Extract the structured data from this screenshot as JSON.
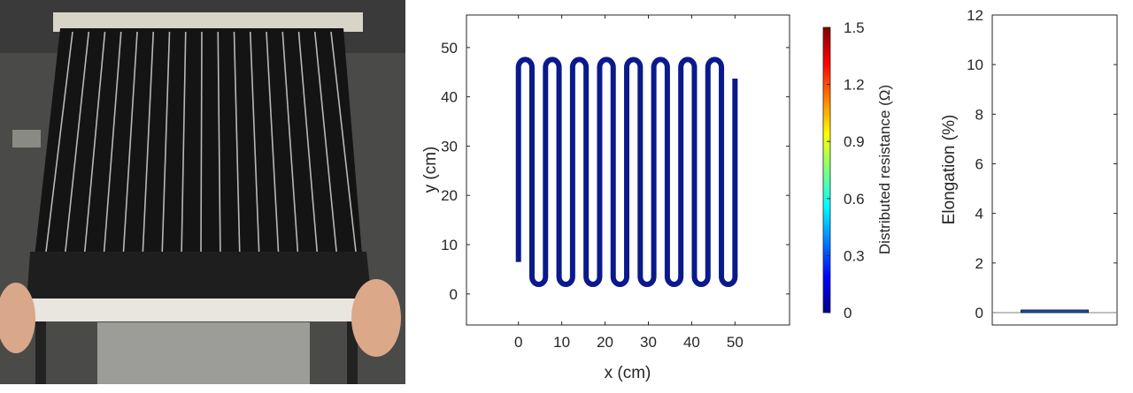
{
  "chart_data": [
    {
      "type": "line",
      "title": "",
      "xlabel": "x (cm)",
      "ylabel": "y (cm)",
      "xlim": [
        -12,
        62.6
      ],
      "ylim": [
        -6.3,
        56.6
      ],
      "xticks": [
        0,
        10,
        20,
        30,
        40,
        50
      ],
      "yticks": [
        0,
        10,
        20,
        30,
        40,
        50
      ],
      "grid": false,
      "series": [
        {
          "name": "serpentine conductor",
          "color": "#0a1a8c",
          "segments": 17,
          "x_start": 0,
          "x_end": 50,
          "y_start": 6.5,
          "y_low": 3.5,
          "y_high": 46,
          "y_end": 43.7,
          "value": 0
        }
      ],
      "colorbar": {
        "label": "Distributed resistance (Ω)",
        "range": [
          0,
          1.5
        ],
        "ticks": [
          "0",
          "0.3",
          "0.6",
          "0.9",
          "1.2",
          "1.5"
        ],
        "colormap": "jet"
      }
    },
    {
      "type": "bar",
      "ylabel": "Elongation (%)",
      "ylim": [
        -0.5,
        12
      ],
      "yticks": [
        0,
        2,
        4,
        6,
        8,
        10,
        12
      ],
      "categories": [
        ""
      ],
      "values": [
        0.1
      ],
      "bar_color": "#1450b4"
    }
  ]
}
